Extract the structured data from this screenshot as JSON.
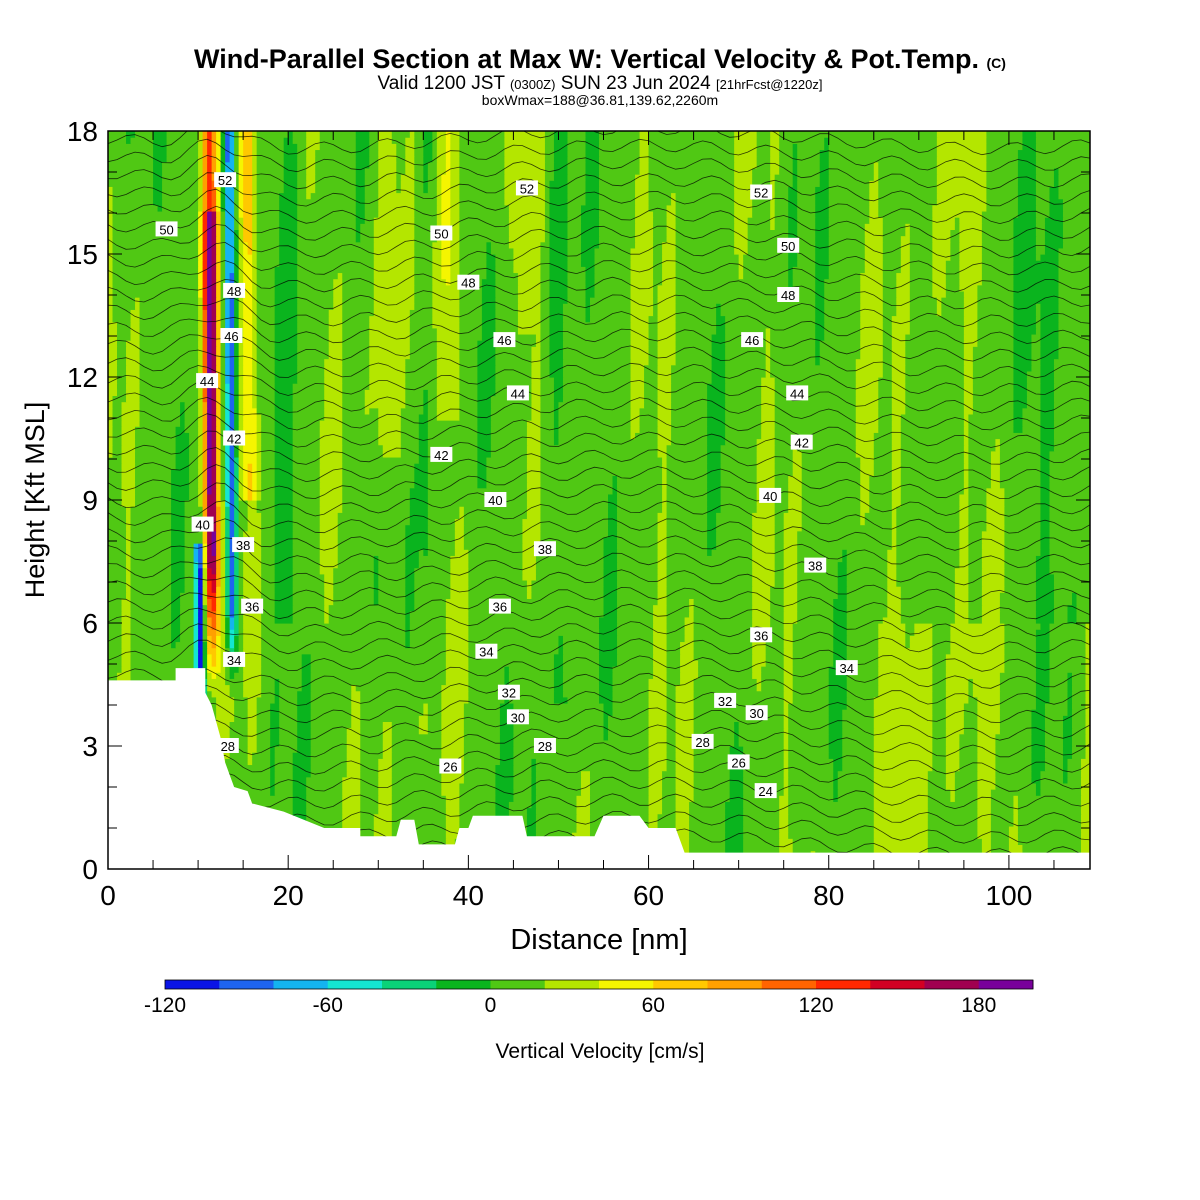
{
  "header": {
    "title_main": "Wind-Parallel Section at Max W: Vertical Velocity & Pot.Temp.",
    "title_mark": "(C)",
    "valid_prefix": "Valid 1200 JST",
    "valid_zulu": "(0300Z)",
    "valid_date": "SUN 23 Jun 2024",
    "forecast_info": "[21hrFcst@1220z]",
    "box_info": "boxWmax=188@36.81,139.62,2260m"
  },
  "chart_data": {
    "type": "heatmap",
    "xlabel": "Distance [nm]",
    "ylabel": "Height [Kft MSL]",
    "xlim": [
      0,
      109
    ],
    "ylim": [
      0,
      18
    ],
    "x_ticks": [
      0,
      20,
      40,
      60,
      80,
      100
    ],
    "y_ticks": [
      0,
      3,
      6,
      9,
      12,
      15,
      18
    ],
    "colorbar": {
      "label": "Vertical Velocity [cm/s]",
      "min": -120,
      "max": 200,
      "step": 20,
      "tick_values": [
        -120,
        -60,
        0,
        60,
        120,
        180
      ],
      "tick_labels": [
        "-120",
        "-60",
        "0",
        "60",
        "120",
        "180"
      ],
      "colors": [
        "#0a14e6",
        "#1e64f0",
        "#14b4f0",
        "#14e6d2",
        "#0ad278",
        "#0ab41e",
        "#50c814",
        "#b4e600",
        "#f5f500",
        "#ffc800",
        "#ffa000",
        "#ff6400",
        "#ff2800",
        "#d20023",
        "#a00050",
        "#78009b"
      ]
    },
    "terrain_profile": [
      [
        0,
        4.6
      ],
      [
        7.5,
        4.6
      ],
      [
        7.5,
        4.9
      ],
      [
        10.8,
        4.9
      ],
      [
        10.8,
        4.3
      ],
      [
        11.5,
        4.0
      ],
      [
        12.5,
        3.2
      ],
      [
        13,
        2.6
      ],
      [
        14,
        2.0
      ],
      [
        15.5,
        1.9
      ],
      [
        16,
        1.6
      ],
      [
        19.5,
        1.4
      ],
      [
        24,
        1.0
      ],
      [
        28,
        1.0
      ],
      [
        28,
        0.8
      ],
      [
        32,
        0.8
      ],
      [
        32.5,
        1.2
      ],
      [
        34,
        1.2
      ],
      [
        34.5,
        0.6
      ],
      [
        38.5,
        0.6
      ],
      [
        39,
        1.0
      ],
      [
        40,
        1.0
      ],
      [
        40.5,
        1.3
      ],
      [
        46,
        1.3
      ],
      [
        46.5,
        0.8
      ],
      [
        54,
        0.8
      ],
      [
        55,
        1.3
      ],
      [
        59,
        1.3
      ],
      [
        60,
        1.0
      ],
      [
        63,
        1.0
      ],
      [
        64,
        0.4
      ],
      [
        109,
        0.4
      ]
    ],
    "updraft_core": {
      "x": 11.6,
      "top": 18,
      "wmax": 188
    },
    "isentrope_labels": [
      {
        "text": "50",
        "x": 6.5,
        "y": 15.6
      },
      {
        "text": "52",
        "x": 13,
        "y": 16.8
      },
      {
        "text": "48",
        "x": 14,
        "y": 14.1
      },
      {
        "text": "46",
        "x": 13.7,
        "y": 13.0
      },
      {
        "text": "44",
        "x": 11,
        "y": 11.9
      },
      {
        "text": "42",
        "x": 14,
        "y": 10.5
      },
      {
        "text": "40",
        "x": 10.5,
        "y": 8.4
      },
      {
        "text": "38",
        "x": 15,
        "y": 7.9
      },
      {
        "text": "36",
        "x": 16,
        "y": 6.4
      },
      {
        "text": "34",
        "x": 14,
        "y": 5.1
      },
      {
        "text": "28",
        "x": 13.3,
        "y": 3.0
      },
      {
        "text": "52",
        "x": 46.5,
        "y": 16.6
      },
      {
        "text": "50",
        "x": 37,
        "y": 15.5
      },
      {
        "text": "48",
        "x": 40,
        "y": 14.3
      },
      {
        "text": "46",
        "x": 44,
        "y": 12.9
      },
      {
        "text": "44",
        "x": 45.5,
        "y": 11.6
      },
      {
        "text": "42",
        "x": 37,
        "y": 10.1
      },
      {
        "text": "40",
        "x": 43,
        "y": 9.0
      },
      {
        "text": "38",
        "x": 48.5,
        "y": 7.8
      },
      {
        "text": "36",
        "x": 43.5,
        "y": 6.4
      },
      {
        "text": "34",
        "x": 42,
        "y": 5.3
      },
      {
        "text": "32",
        "x": 44.5,
        "y": 4.3
      },
      {
        "text": "30",
        "x": 45.5,
        "y": 3.7
      },
      {
        "text": "28",
        "x": 48.5,
        "y": 3.0
      },
      {
        "text": "26",
        "x": 38,
        "y": 2.5
      },
      {
        "text": "52",
        "x": 72.5,
        "y": 16.5
      },
      {
        "text": "50",
        "x": 75.5,
        "y": 15.2
      },
      {
        "text": "48",
        "x": 75.5,
        "y": 14.0
      },
      {
        "text": "46",
        "x": 71.5,
        "y": 12.9
      },
      {
        "text": "44",
        "x": 76.5,
        "y": 11.6
      },
      {
        "text": "42",
        "x": 77,
        "y": 10.4
      },
      {
        "text": "40",
        "x": 73.5,
        "y": 9.1
      },
      {
        "text": "38",
        "x": 78.5,
        "y": 7.4
      },
      {
        "text": "36",
        "x": 72.5,
        "y": 5.7
      },
      {
        "text": "34",
        "x": 82,
        "y": 4.9
      },
      {
        "text": "32",
        "x": 68.5,
        "y": 4.1
      },
      {
        "text": "30",
        "x": 72,
        "y": 3.8
      },
      {
        "text": "28",
        "x": 66,
        "y": 3.1
      },
      {
        "text": "26",
        "x": 70,
        "y": 2.6
      },
      {
        "text": "24",
        "x": 73,
        "y": 1.9
      }
    ]
  }
}
